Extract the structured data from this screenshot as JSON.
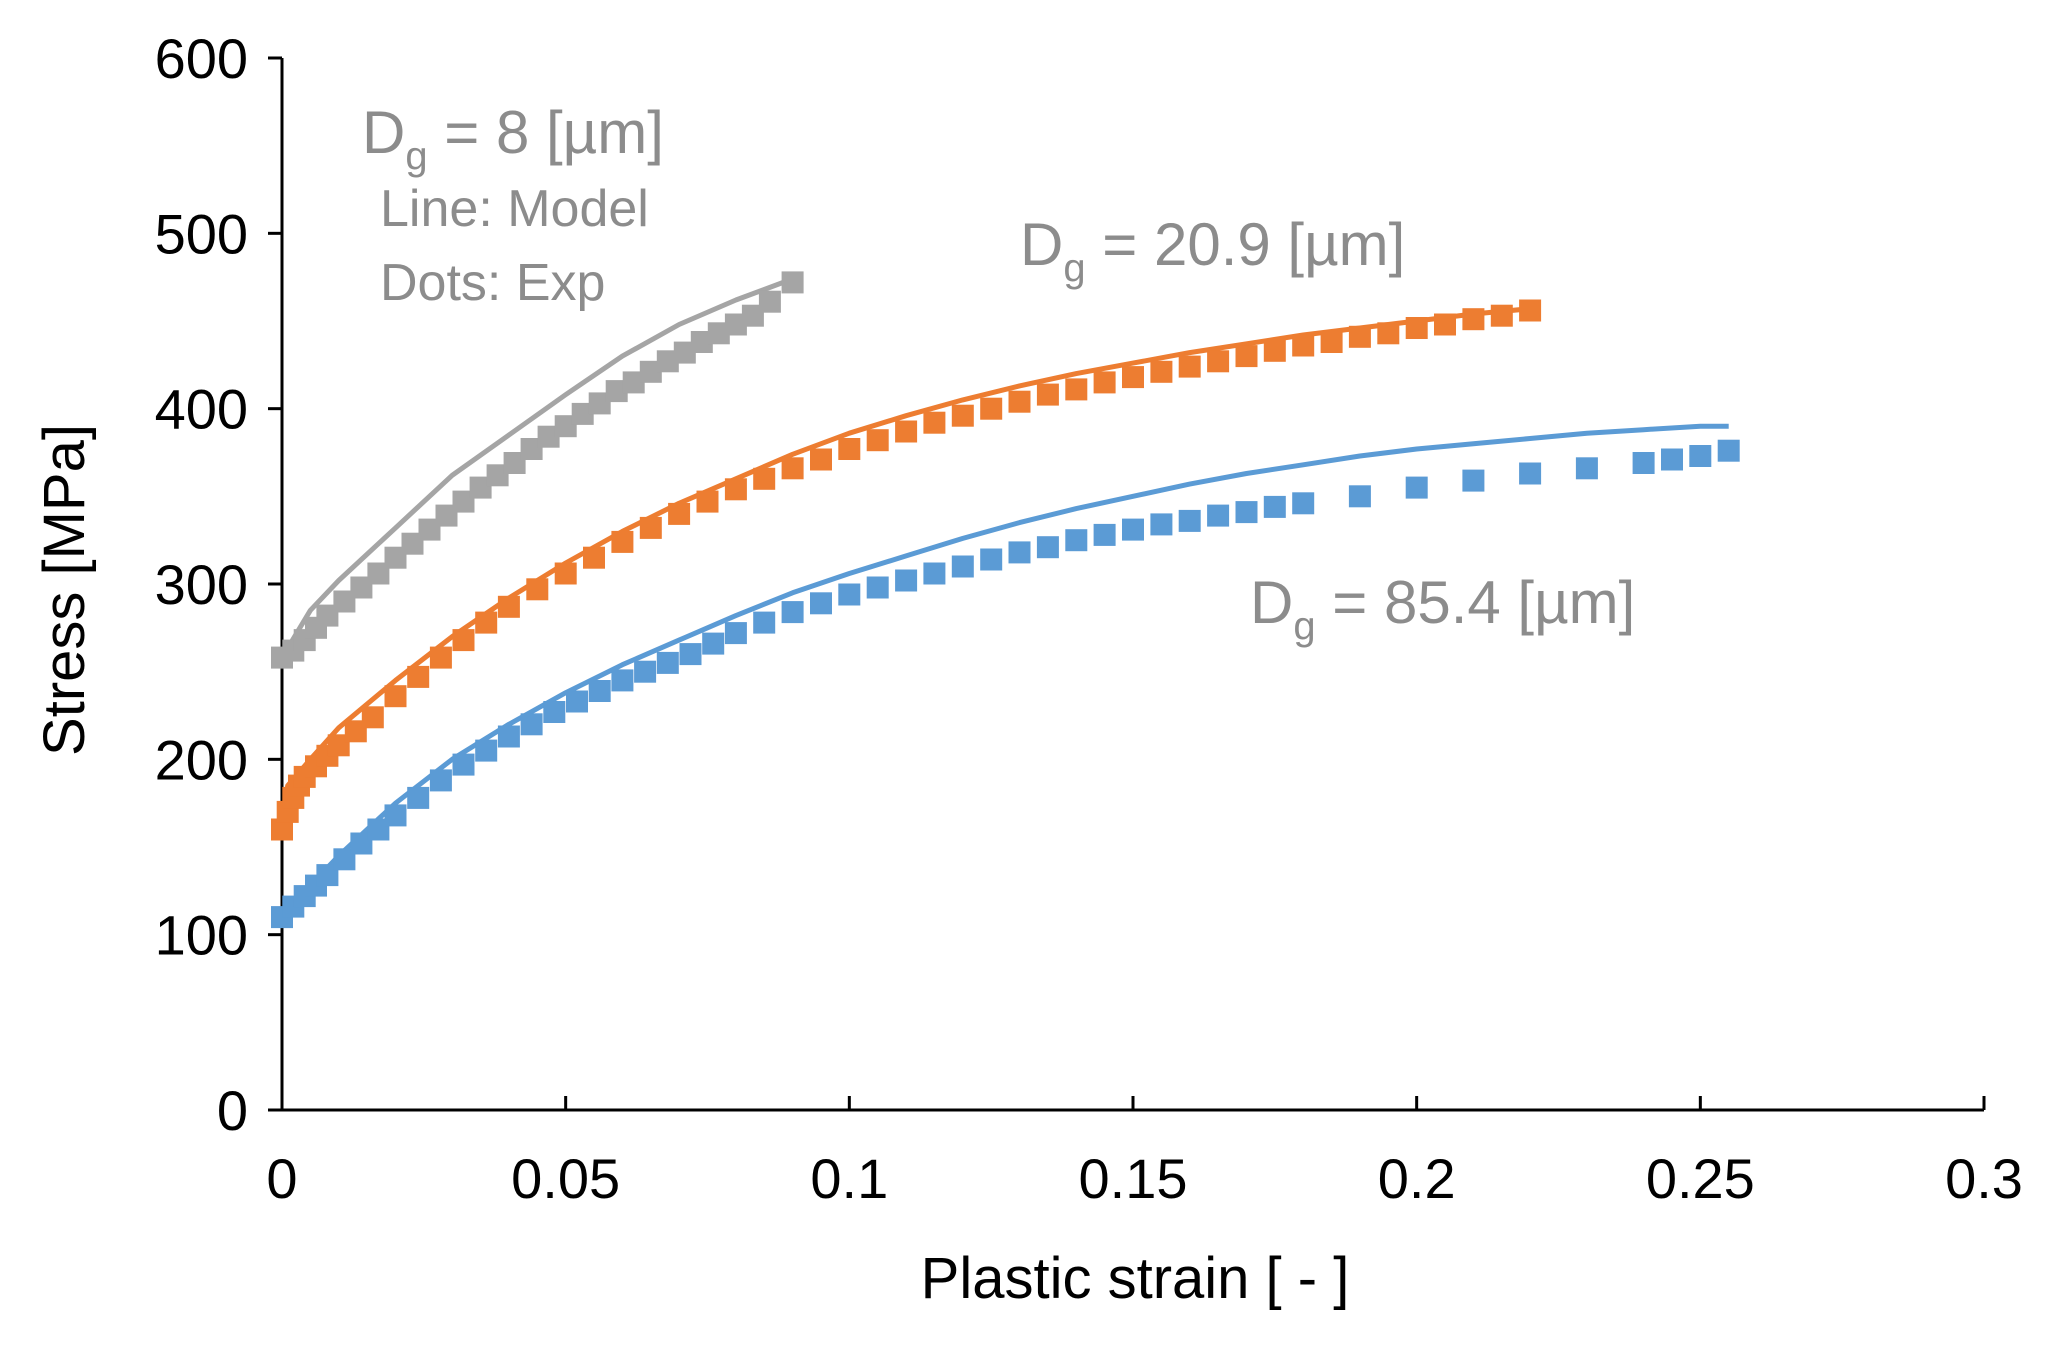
{
  "chart_data": {
    "type": "line",
    "title": "",
    "xlabel": "Plastic strain [ - ]",
    "ylabel": "Stress [MPa]",
    "xlim": [
      0,
      0.3
    ],
    "ylim": [
      0,
      600
    ],
    "xticks": [
      0,
      0.05,
      0.1,
      0.15,
      0.2,
      0.25,
      0.3
    ],
    "yticks": [
      0,
      100,
      200,
      300,
      400,
      500,
      600
    ],
    "xtick_labels": [
      "0",
      "0.05",
      "0.1",
      "0.15",
      "0.2",
      "0.25",
      "0.3"
    ],
    "ytick_labels": [
      "0",
      "100",
      "200",
      "300",
      "400",
      "500",
      "600"
    ],
    "grid": false,
    "annotations": {
      "dg8_main": "D",
      "dg8_sub": "g",
      "dg8_rest": " = 8 [µm]",
      "line_note": "Line: Model",
      "dots_note": "Dots: Exp",
      "dg209_main": "D",
      "dg209_sub": "g",
      "dg209_rest": " = 20.9 [µm]",
      "dg854_main": "D",
      "dg854_sub": "g",
      "dg854_rest": " = 85.4 [µm]"
    },
    "series": [
      {
        "name": "Dg = 8 µm (Model)",
        "kind": "line",
        "color": "#a5a5a5",
        "x": [
          0,
          0.005,
          0.01,
          0.02,
          0.03,
          0.04,
          0.05,
          0.06,
          0.07,
          0.08,
          0.09
        ],
        "y": [
          258,
          285,
          302,
          332,
          362,
          385,
          408,
          430,
          448,
          462,
          474
        ]
      },
      {
        "name": "Dg = 8 µm (Exp)",
        "kind": "dots",
        "color": "#a5a5a5",
        "x": [
          0,
          0.002,
          0.004,
          0.006,
          0.008,
          0.011,
          0.014,
          0.017,
          0.02,
          0.023,
          0.026,
          0.029,
          0.032,
          0.035,
          0.038,
          0.041,
          0.044,
          0.047,
          0.05,
          0.053,
          0.056,
          0.059,
          0.062,
          0.065,
          0.068,
          0.071,
          0.074,
          0.077,
          0.08,
          0.083,
          0.086,
          0.09
        ],
        "y": [
          258,
          262,
          268,
          275,
          282,
          290,
          298,
          306,
          315,
          323,
          331,
          339,
          347,
          355,
          362,
          369,
          377,
          384,
          390,
          397,
          403,
          410,
          415,
          421,
          427,
          432,
          438,
          443,
          448,
          453,
          461,
          472
        ]
      },
      {
        "name": "Dg = 20.9 µm (Model)",
        "kind": "line",
        "color": "#ed7d31",
        "x": [
          0,
          0.001,
          0.005,
          0.01,
          0.02,
          0.03,
          0.04,
          0.05,
          0.06,
          0.07,
          0.08,
          0.09,
          0.1,
          0.11,
          0.12,
          0.13,
          0.14,
          0.15,
          0.16,
          0.17,
          0.18,
          0.19,
          0.2,
          0.21,
          0.22
        ],
        "y": [
          160,
          185,
          200,
          218,
          245,
          270,
          292,
          312,
          330,
          346,
          360,
          374,
          386,
          396,
          405,
          413,
          420,
          426,
          432,
          437,
          442,
          446,
          450,
          454,
          457
        ]
      },
      {
        "name": "Dg = 20.9 µm (Exp)",
        "kind": "dots",
        "color": "#ed7d31",
        "x": [
          0,
          0.001,
          0.002,
          0.003,
          0.004,
          0.006,
          0.008,
          0.01,
          0.013,
          0.016,
          0.02,
          0.024,
          0.028,
          0.032,
          0.036,
          0.04,
          0.045,
          0.05,
          0.055,
          0.06,
          0.065,
          0.07,
          0.075,
          0.08,
          0.085,
          0.09,
          0.095,
          0.1,
          0.105,
          0.11,
          0.115,
          0.12,
          0.125,
          0.13,
          0.135,
          0.14,
          0.145,
          0.15,
          0.155,
          0.16,
          0.165,
          0.17,
          0.175,
          0.18,
          0.185,
          0.19,
          0.195,
          0.2,
          0.205,
          0.21,
          0.215,
          0.22
        ],
        "y": [
          160,
          170,
          178,
          185,
          190,
          196,
          202,
          208,
          216,
          224,
          236,
          247,
          258,
          268,
          278,
          287,
          297,
          306,
          315,
          324,
          332,
          340,
          347,
          354,
          360,
          366,
          371,
          377,
          382,
          387,
          392,
          396,
          400,
          404,
          408,
          411,
          415,
          418,
          421,
          424,
          427,
          430,
          433,
          436,
          438,
          441,
          443,
          446,
          448,
          451,
          453,
          456
        ]
      },
      {
        "name": "Dg = 85.4 µm (Model)",
        "kind": "line",
        "color": "#5b9bd5",
        "x": [
          0,
          0.005,
          0.01,
          0.02,
          0.03,
          0.04,
          0.05,
          0.06,
          0.07,
          0.08,
          0.09,
          0.1,
          0.11,
          0.12,
          0.13,
          0.14,
          0.15,
          0.16,
          0.17,
          0.18,
          0.19,
          0.2,
          0.21,
          0.22,
          0.23,
          0.24,
          0.25,
          0.255
        ],
        "y": [
          110,
          128,
          145,
          175,
          200,
          220,
          238,
          254,
          268,
          282,
          295,
          306,
          316,
          326,
          335,
          343,
          350,
          357,
          363,
          368,
          373,
          377,
          380,
          383,
          386,
          388,
          390,
          390
        ]
      },
      {
        "name": "Dg = 85.4 µm (Exp)",
        "kind": "dots",
        "color": "#5b9bd5",
        "x": [
          0,
          0.002,
          0.004,
          0.006,
          0.008,
          0.011,
          0.014,
          0.017,
          0.02,
          0.024,
          0.028,
          0.032,
          0.036,
          0.04,
          0.044,
          0.048,
          0.052,
          0.056,
          0.06,
          0.064,
          0.068,
          0.072,
          0.076,
          0.08,
          0.085,
          0.09,
          0.095,
          0.1,
          0.105,
          0.11,
          0.115,
          0.12,
          0.125,
          0.13,
          0.135,
          0.14,
          0.145,
          0.15,
          0.155,
          0.16,
          0.165,
          0.17,
          0.175,
          0.18,
          0.19,
          0.2,
          0.21,
          0.22,
          0.23,
          0.24,
          0.245,
          0.25,
          0.255
        ],
        "y": [
          110,
          116,
          122,
          128,
          134,
          143,
          152,
          160,
          168,
          178,
          188,
          197,
          205,
          213,
          220,
          227,
          233,
          239,
          245,
          250,
          255,
          260,
          266,
          272,
          278,
          284,
          289,
          294,
          298,
          302,
          306,
          310,
          314,
          318,
          321,
          325,
          328,
          331,
          334,
          336,
          339,
          341,
          344,
          346,
          350,
          355,
          359,
          363,
          366,
          369,
          371,
          373,
          376
        ]
      }
    ]
  }
}
